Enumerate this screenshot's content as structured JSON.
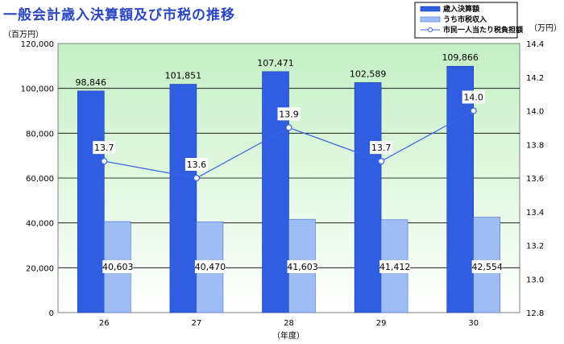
{
  "chart_data": {
    "type": "bar",
    "title": "一般会計歳入決算額及び市税の推移",
    "ylabel_left": "（百万円）",
    "ylabel_right": "（万円）",
    "xlabel": "（年度）",
    "categories": [
      "26",
      "27",
      "28",
      "29",
      "30"
    ],
    "series": [
      {
        "name": "歳入決算額",
        "type": "bar",
        "axis": "left",
        "color": "#2f5fe0",
        "values": [
          98846,
          101851,
          107471,
          102589,
          109866
        ],
        "labels": [
          "98,846",
          "101,851",
          "107,471",
          "102,589",
          "109,866"
        ]
      },
      {
        "name": "うち市税収入",
        "type": "bar",
        "axis": "left",
        "color": "#9ebdf5",
        "values": [
          40603,
          40470,
          41603,
          41412,
          42554
        ],
        "labels": [
          "40,603",
          "40,470",
          "41,603",
          "41,412",
          "42,554"
        ]
      },
      {
        "name": "市民一人当たり税負担額",
        "type": "line",
        "axis": "right",
        "color": "#3a63e8",
        "values": [
          13.7,
          13.6,
          13.9,
          13.7,
          14.0
        ],
        "labels": [
          "13.7",
          "13.6",
          "13.9",
          "13.7",
          "14.0"
        ]
      }
    ],
    "ylim_left": [
      0,
      120000
    ],
    "ylim_right": [
      12.8,
      14.4
    ],
    "yticks_left": [
      "0",
      "20,000",
      "40,000",
      "60,000",
      "80,000",
      "100,000",
      "120,000"
    ],
    "yticks_right": [
      "12.8",
      "13.0",
      "13.2",
      "13.4",
      "13.6",
      "13.8",
      "14.0",
      "14.2",
      "14.4"
    ],
    "grid": true,
    "legend": "top-right",
    "background_gradient": [
      "#c4f0c4",
      "#ffffff"
    ]
  }
}
